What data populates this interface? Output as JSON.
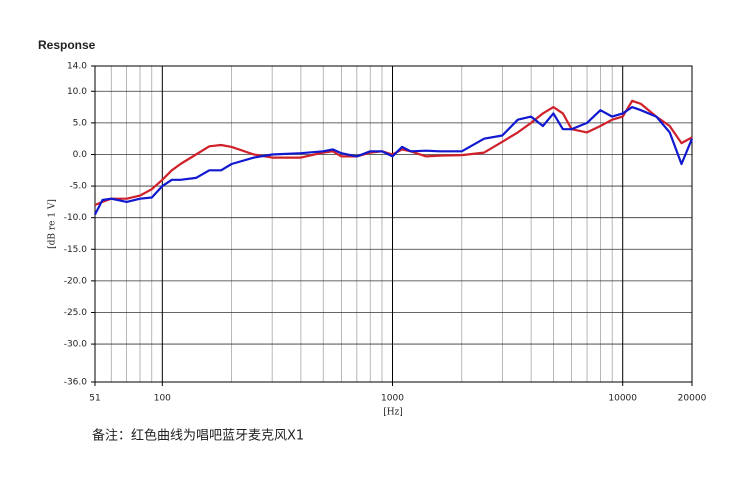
{
  "chart_data": {
    "type": "line",
    "title": "Response",
    "x_label": "[Hz]",
    "y_label": "[dB re 1 V]",
    "note": "备注：红色曲线为唱吧蓝牙麦克风X1",
    "x_log": true,
    "grid": true,
    "x": [
      51,
      55,
      60,
      70,
      80,
      90,
      100,
      110,
      120,
      140,
      160,
      180,
      200,
      250,
      300,
      400,
      500,
      550,
      600,
      700,
      800,
      900,
      1000,
      1100,
      1200,
      1400,
      1600,
      2000,
      2500,
      3000,
      3500,
      4000,
      4500,
      5000,
      5500,
      6000,
      7000,
      8000,
      9000,
      10000,
      11000,
      12000,
      14000,
      16000,
      18000,
      20000
    ],
    "series": [
      {
        "name": "red",
        "color": "#d0202a",
        "values": [
          -8,
          -7.5,
          -7,
          -7,
          -6.5,
          -5.5,
          -4,
          -2.5,
          -1.5,
          0,
          1.3,
          1.5,
          1.2,
          0,
          -0.5,
          -0.5,
          0.3,
          0.5,
          -0.3,
          -0.3,
          0.3,
          0.5,
          0,
          0.8,
          0.5,
          -0.3,
          -0.2,
          -0.1,
          0.3,
          2,
          3.5,
          5,
          6.5,
          7.5,
          6.5,
          4,
          3.5,
          4.5,
          5.5,
          6,
          8.5,
          8,
          6,
          4.5,
          1.8,
          2.7
        ]
      },
      {
        "name": "blue",
        "color": "#1018d0",
        "values": [
          -9.5,
          -7.2,
          -7,
          -7.5,
          -7,
          -6.8,
          -5,
          -4,
          -4,
          -3.7,
          -2.5,
          -2.5,
          -1.5,
          -0.5,
          0,
          0.2,
          0.5,
          0.8,
          0.2,
          -0.3,
          0.5,
          0.5,
          -0.3,
          1.2,
          0.5,
          0.6,
          0.5,
          0.5,
          2.5,
          3,
          5.5,
          6,
          4.5,
          6.5,
          4,
          4,
          5,
          7,
          6,
          6.5,
          7.5,
          7,
          6,
          3.5,
          -1.5,
          2.5
        ]
      }
    ],
    "xlim": [
      51,
      20000
    ],
    "xticks": [
      51,
      100,
      1000,
      10000,
      20000
    ],
    "xgrid_minor": [
      60,
      70,
      80,
      90,
      200,
      300,
      400,
      500,
      600,
      700,
      800,
      900,
      2000,
      3000,
      4000,
      5000,
      6000,
      7000,
      8000,
      9000
    ],
    "ylim": [
      -36,
      14
    ],
    "yticks": [
      {
        "value": -36,
        "label": "-36.0"
      },
      {
        "value": -30,
        "label": "-30.0"
      },
      {
        "value": -25,
        "label": "-25.0"
      },
      {
        "value": -20,
        "label": "-20.0"
      },
      {
        "value": -15,
        "label": "-15.0"
      },
      {
        "value": -10,
        "label": "-10.0"
      },
      {
        "value": -5,
        "label": "-5.0"
      },
      {
        "value": 0,
        "label": "0.0"
      },
      {
        "value": 5,
        "label": "5.0"
      },
      {
        "value": 10,
        "label": "10.0"
      },
      {
        "value": 14,
        "label": "14.0"
      }
    ]
  }
}
